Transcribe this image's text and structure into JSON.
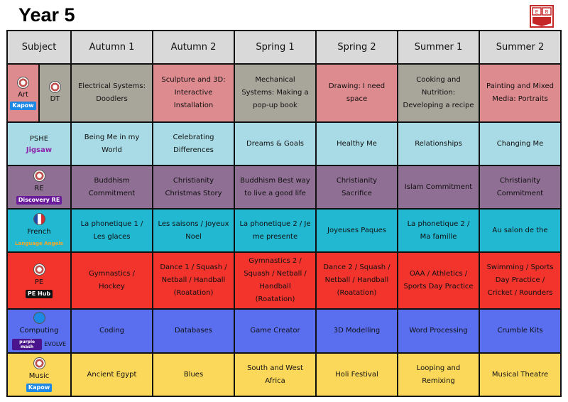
{
  "title": "Year 5",
  "crest_letters": "E B",
  "headers": [
    "Subject",
    "Autumn 1",
    "Autumn 2",
    "Spring 1",
    "Spring 2",
    "Summer 1",
    "Summer 2"
  ],
  "rows": [
    {
      "subject": "Art",
      "subject2": "DT",
      "logo": "Kapow",
      "color": "#dd8b8f",
      "altcolor": "#a8a59b",
      "cells": [
        "Electrical Systems: Doodlers",
        "Sculpture and 3D: Interactive Installation",
        "Mechanical Systems: Making a pop-up book",
        "Drawing: I need space",
        "Cooking and Nutrition: Developing a recipe",
        "Painting and Mixed Media: Portraits"
      ]
    },
    {
      "subject": "PSHE",
      "logo": "Jigsaw",
      "color": "#a8dbe5",
      "cells": [
        "Being Me in my World",
        "Celebrating Differences",
        "Dreams & Goals",
        "Healthy Me",
        "Relationships",
        "Changing Me"
      ]
    },
    {
      "subject": "RE",
      "logo": "Discovery RE",
      "color": "#8f6f93",
      "cells": [
        "Buddhism Commitment",
        "Christianity Christmas Story",
        "Buddhism  Best way to live a good life",
        "Christianity Sacrifice",
        "Islam Commitment",
        "Christianity Commitment"
      ]
    },
    {
      "subject": "French",
      "logo": "Language Angels",
      "color": "#22b8d2",
      "cells": [
        "La phonetique 1 / Les glaces",
        "Les saisons / Joyeux Noel",
        "La phonetique 2 / Je me presente",
        "Joyeuses Paques",
        "La phonetique 2 / Ma famille",
        "Au salon de the"
      ]
    },
    {
      "subject": "PE",
      "logo": "PE Hub",
      "color": "#f3342d",
      "cells": [
        "Gymnastics / Hockey",
        "Dance 1 / Squash / Netball / Handball (Roatation)",
        "Gymnastics 2 / Squash / Netball / Handball (Roatation)",
        "Dance 2 / Squash / Netball / Handball (Roatation)",
        "OAA / Athletics / Sports Day Practice",
        "Swimming / Sports Day Practice / Cricket / Rounders"
      ]
    },
    {
      "subject": "Computing",
      "logo": "purple mash",
      "logo2": "EVOLVE",
      "color": "#5a6ff0",
      "cells": [
        "Coding",
        "Databases",
        "Game Creator",
        "3D Modelling",
        "Word Processing",
        "Crumble Kits"
      ]
    },
    {
      "subject": "Music",
      "logo": "Kapow",
      "color": "#fcd85a",
      "cells": [
        "Ancient Egypt",
        "Blues",
        "South and West Africa",
        "Holi Festival",
        "Looping and Remixing",
        "Musical Theatre"
      ]
    }
  ]
}
